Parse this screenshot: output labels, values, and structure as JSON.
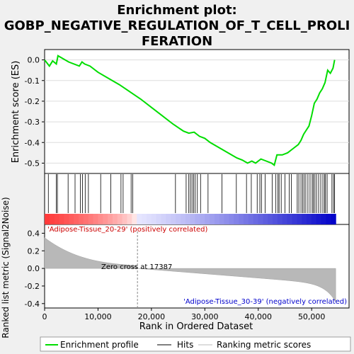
{
  "chart_data": {
    "type": "line",
    "title_line1": "Enrichment plot:",
    "title_line2": "GOBP_NEGATIVE_REGULATION_OF_T_CELL_PROLI",
    "title_line3": "FERATION",
    "es_ylabel": "Enrichment score (ES)",
    "metric_ylabel": "Ranked list metric (Signal2Noise)",
    "xlabel": "Rank in Ordered Dataset",
    "es_yticks": [
      "0.0",
      "-0.1",
      "-0.2",
      "-0.3",
      "-0.4",
      "-0.5"
    ],
    "metric_yticks": [
      "0.4",
      "0.2",
      "0.0",
      "-0.2",
      "-0.4"
    ],
    "xticks": [
      "0",
      "10,000",
      "20,000",
      "30,000",
      "40,000",
      "50,000"
    ],
    "es_ylim": [
      -0.55,
      0.05
    ],
    "metric_ylim": [
      -0.45,
      0.5
    ],
    "xlim": [
      0,
      57000
    ],
    "n_genes": 54500,
    "zero_cross_rank": 17387,
    "zero_cross_label": "Zero cross at 17387",
    "pos_label": "'Adipose-Tissue_20-29' (positively correlated)",
    "neg_label": "'Adipose-Tissue_30-39' (negatively correlated)",
    "legend": [
      {
        "label": "Enrichment profile",
        "color": "#00dd00"
      },
      {
        "label": "Hits",
        "color": "#000000"
      },
      {
        "label": "Ranking metric scores",
        "color": "#bbbbbb"
      }
    ],
    "es_curve": {
      "x": [
        0,
        900,
        1500,
        2200,
        2500,
        4500,
        6500,
        7000,
        7500,
        8500,
        10000,
        12000,
        14000,
        16000,
        18000,
        20000,
        22000,
        24000,
        26000,
        27000,
        28000,
        29000,
        30000,
        31000,
        33000,
        35000,
        36000,
        37000,
        38000,
        38800,
        39500,
        40500,
        41500,
        42500,
        43000,
        43500,
        44500,
        45500,
        46500,
        47500,
        48000,
        48500,
        49000,
        49500,
        50000,
        50500,
        51000,
        51500,
        52000,
        52500,
        53000,
        53500,
        54000,
        54300
      ],
      "y": [
        0.0,
        -0.03,
        -0.005,
        -0.02,
        0.02,
        -0.01,
        -0.03,
        -0.01,
        -0.02,
        -0.03,
        -0.06,
        -0.09,
        -0.12,
        -0.155,
        -0.19,
        -0.23,
        -0.27,
        -0.31,
        -0.345,
        -0.355,
        -0.35,
        -0.37,
        -0.38,
        -0.4,
        -0.43,
        -0.46,
        -0.475,
        -0.485,
        -0.5,
        -0.49,
        -0.5,
        -0.48,
        -0.49,
        -0.5,
        -0.51,
        -0.46,
        -0.46,
        -0.45,
        -0.43,
        -0.41,
        -0.39,
        -0.36,
        -0.34,
        -0.32,
        -0.27,
        -0.21,
        -0.19,
        -0.16,
        -0.14,
        -0.11,
        -0.05,
        -0.065,
        -0.04,
        0.0
      ]
    },
    "hits": [
      700,
      2200,
      2400,
      4400,
      5700,
      6700,
      7100,
      7600,
      8200,
      10500,
      12400,
      14300,
      14700,
      16200,
      16500,
      24500,
      26500,
      27000,
      27300,
      27600,
      27900,
      28200,
      28600,
      29200,
      30600,
      33200,
      35900,
      37800,
      38700,
      39800,
      40300,
      40600,
      41300,
      42600,
      43300,
      43700,
      43900,
      44300,
      45000,
      45800,
      46200,
      47300,
      47600,
      48000,
      48300,
      48600,
      48900,
      49300,
      49700,
      50100,
      50300,
      50600,
      50900,
      51300,
      51700,
      52100,
      52400,
      52600,
      52900,
      53800,
      54100,
      54300
    ]
  }
}
